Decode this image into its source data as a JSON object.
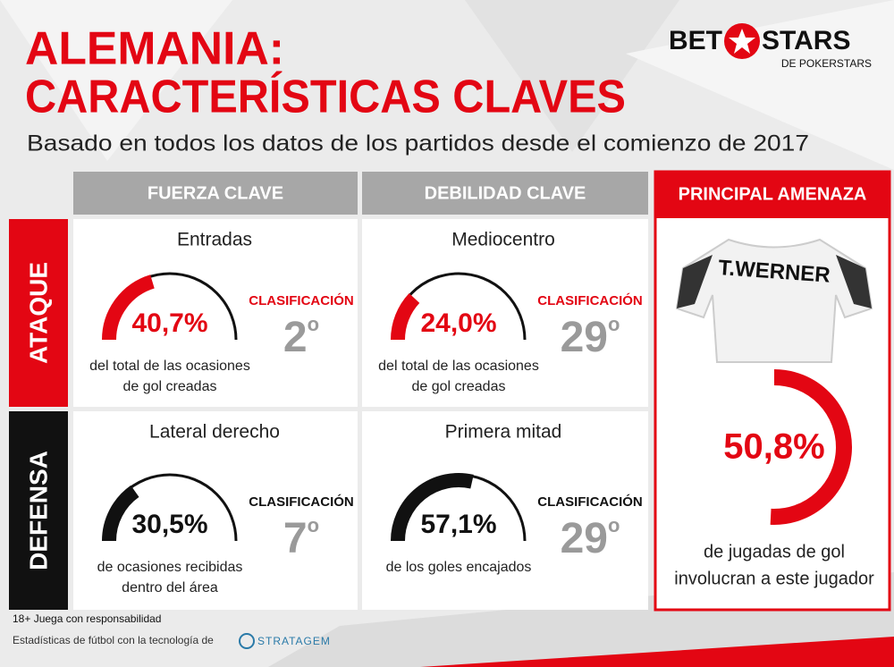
{
  "header": {
    "title_line1": "ALEMANIA:",
    "title_line2": "CARACTERÍSTICAS CLAVES",
    "subtitle": "Basado en todos los datos de los partidos desde el comienzo de 2017"
  },
  "logo": {
    "brand_left": "BET",
    "brand_right": "STARS",
    "tagline": "DE POKERSTARS"
  },
  "columns": [
    "FUERZA CLAVE",
    "DEBILIDAD CLAVE",
    "PRINCIPAL AMENAZA"
  ],
  "rows": [
    "ATAQUE",
    "DEFENSA"
  ],
  "cells": [
    {
      "metric": "Entradas",
      "value": 40.7,
      "value_label": "40,7%",
      "caption_lines": [
        "del total de las ocasiones",
        "de gol creadas"
      ],
      "rank_label": "CLASIFICACIÓN",
      "rank": "2",
      "rank_suffix": "o",
      "color": "#e30613"
    },
    {
      "metric": "Mediocentro",
      "value": 24.0,
      "value_label": "24,0%",
      "caption_lines": [
        "del total de las ocasiones",
        "de gol creadas"
      ],
      "rank_label": "CLASIFICACIÓN",
      "rank": "29",
      "rank_suffix": "o",
      "color": "#e30613"
    },
    {
      "metric": "Lateral derecho",
      "value": 30.5,
      "value_label": "30,5%",
      "caption_lines": [
        "de ocasiones recibidas",
        "dentro del área"
      ],
      "rank_label": "CLASIFICACIÓN",
      "rank": "7",
      "rank_suffix": "o",
      "color": "#111111"
    },
    {
      "metric": "Primera mitad",
      "value": 57.1,
      "value_label": "57,1%",
      "caption_lines": [
        "de los goles encajados"
      ],
      "rank_label": "CLASIFICACIÓN",
      "rank": "29",
      "rank_suffix": "o",
      "color": "#111111"
    }
  ],
  "threat": {
    "player": "T.WERNER",
    "value": 50.8,
    "value_label": "50,8%",
    "caption_lines": [
      "de jugadas de gol",
      "involucran a este jugador"
    ],
    "color": "#e30613"
  },
  "footer": {
    "line1": "18+ Juega con responsabilidad",
    "line2": "Estadísticas de fútbol con la tecnología de",
    "partner": "STRATAGEM"
  }
}
